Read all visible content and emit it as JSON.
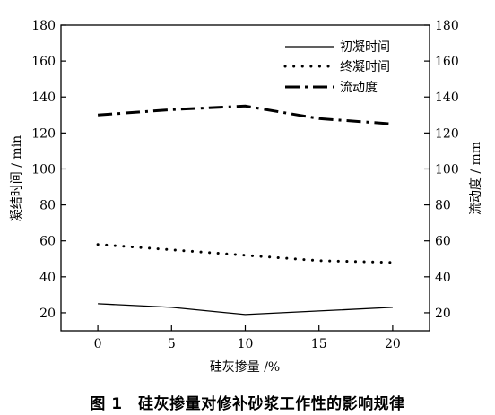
{
  "chart_data": {
    "type": "line",
    "x": [
      0,
      5,
      10,
      15,
      20
    ],
    "xticks": [
      "0",
      "5",
      "10",
      "15",
      "20"
    ],
    "xlim": [
      -2.5,
      22.5
    ],
    "xlabel": "硅灰掺量 /%",
    "ylabel_left": "凝结时间 / min",
    "ylabel_right": "流动度 / mm",
    "ylim_left": [
      10,
      180
    ],
    "ylim_right": [
      10,
      180
    ],
    "yticks_left": [
      "20",
      "40",
      "60",
      "80",
      "100",
      "120",
      "140",
      "160",
      "180"
    ],
    "yticks_right": [
      "20",
      "40",
      "60",
      "80",
      "100",
      "120",
      "140",
      "160",
      "180"
    ],
    "legend_position": "top-right",
    "grid": false,
    "series": [
      {
        "name": "初凝时间",
        "axis": "left",
        "style": "solid",
        "values": [
          25,
          23,
          19,
          21,
          23
        ]
      },
      {
        "name": "终凝时间",
        "axis": "left",
        "style": "dotted",
        "values": [
          58,
          55,
          52,
          49,
          48
        ]
      },
      {
        "name": "流动度",
        "axis": "right",
        "style": "dashdot",
        "values": [
          130,
          133,
          135,
          128,
          125
        ]
      }
    ]
  },
  "caption": "图 1　硅灰掺量对修补砂浆工作性的影响规律"
}
